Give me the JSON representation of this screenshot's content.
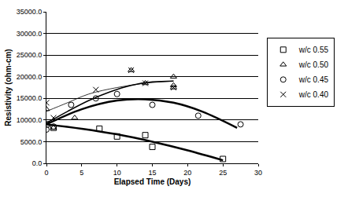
{
  "chart_data": {
    "type": "scatter",
    "x_label": "Elapsed Time (Days)",
    "y_label": "Resistivity (ohm-cm)",
    "xlim": [
      0,
      30
    ],
    "xticks": [
      0,
      5,
      10,
      15,
      20,
      25,
      30
    ],
    "ylim": [
      0,
      35000
    ],
    "yticks": [
      {
        "value": 0,
        "label": "0.0"
      },
      {
        "value": 5000,
        "label": "5000.0"
      },
      {
        "value": 10000,
        "label": "10000.0"
      },
      {
        "value": 15000,
        "label": "15000.0"
      },
      {
        "value": 20000,
        "label": "20000.0"
      },
      {
        "value": 25000,
        "label": "25000.0"
      },
      {
        "value": 30000,
        "label": "30000.0"
      },
      {
        "value": 35000,
        "label": "35000.0"
      }
    ],
    "grid": true,
    "legend": "right",
    "series": [
      {
        "name": "w/c 0.55",
        "color": "#000000",
        "marker": "square",
        "line_style": "thick",
        "x": [
          0,
          1,
          7.5,
          10,
          14,
          15,
          25
        ],
        "values": [
          9000,
          8200,
          8000,
          6200,
          6500,
          3800,
          1000
        ],
        "trend_x": [
          0,
          5,
          10,
          15,
          20,
          25
        ],
        "trend_values": [
          9000,
          8000,
          6700,
          5000,
          3000,
          700
        ]
      },
      {
        "name": "w/c 0.50",
        "color": "#000000",
        "marker": "triangle",
        "line_style": "medium",
        "x": [
          0,
          1,
          4,
          12,
          14,
          18,
          18,
          18
        ],
        "values": [
          12500,
          8200,
          10500,
          21500,
          18500,
          20000,
          17500,
          18000
        ],
        "trend_x": [
          0,
          3,
          6,
          9,
          12,
          15,
          18
        ],
        "trend_values": [
          9300,
          12000,
          14500,
          16500,
          18000,
          18800,
          19000
        ]
      },
      {
        "name": "w/c 0.45",
        "color": "#000000",
        "marker": "circle",
        "line_style": "thick",
        "x": [
          0,
          1,
          3.5,
          7,
          10,
          15,
          21.5,
          27.5
        ],
        "values": [
          7800,
          8500,
          13500,
          15000,
          16000,
          13500,
          11000,
          9000
        ],
        "trend_x": [
          0,
          5,
          10,
          14,
          18,
          22,
          27
        ],
        "trend_values": [
          9000,
          12500,
          14500,
          14800,
          14000,
          12000,
          8200
        ]
      },
      {
        "name": "w/c 0.40",
        "color": "#000000",
        "marker": "x",
        "line_style": "thin",
        "x": [
          0,
          1,
          7,
          12,
          14,
          18
        ],
        "values": [
          14000,
          10500,
          17000,
          21500,
          18500,
          17500
        ],
        "trend_x": [
          0,
          3,
          6,
          10,
          14,
          18
        ],
        "trend_values": [
          12000,
          14000,
          16000,
          17500,
          18500,
          19000
        ]
      }
    ]
  }
}
